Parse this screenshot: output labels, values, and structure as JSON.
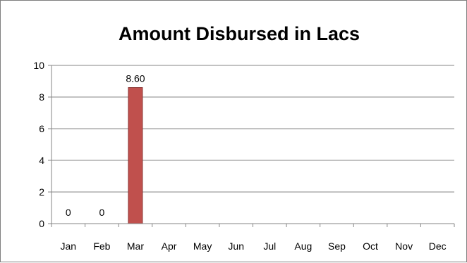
{
  "chart_data": {
    "type": "bar",
    "title": "Amount Disbursed in Lacs",
    "xlabel": "",
    "ylabel": "",
    "categories": [
      "Jan",
      "Feb",
      "Mar",
      "Apr",
      "May",
      "Jun",
      "Jul",
      "Aug",
      "Sep",
      "Oct",
      "Nov",
      "Dec"
    ],
    "values": [
      0,
      0,
      8.6,
      null,
      null,
      null,
      null,
      null,
      null,
      null,
      null,
      null
    ],
    "data_labels": [
      "0",
      "0",
      "8.60",
      "",
      "",
      "",
      "",
      "",
      "",
      "",
      "",
      ""
    ],
    "ylim": [
      0,
      10
    ],
    "yticks": [
      0,
      2,
      4,
      6,
      8,
      10
    ],
    "ytick_labels": [
      "0",
      "2",
      "4",
      "6",
      "8",
      "10"
    ],
    "grid": true,
    "legend": false,
    "bar_color": "#c0504d",
    "bar_edge_color": "#8c3836",
    "gridline_color": "#868686",
    "axis_color": "#868686"
  }
}
